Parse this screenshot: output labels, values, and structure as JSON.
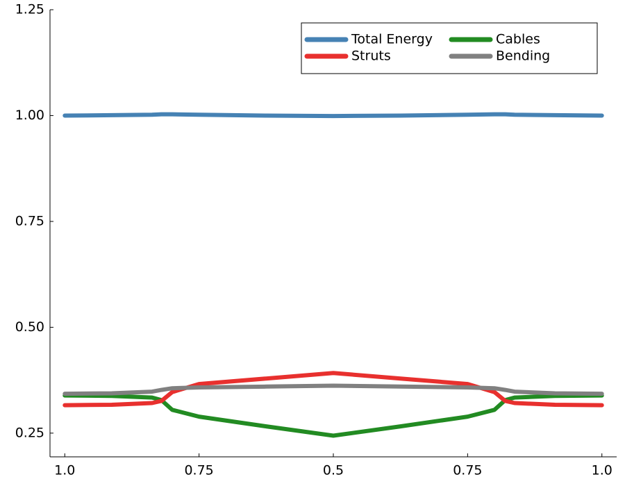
{
  "chart_data": {
    "type": "line",
    "x": [
      0,
      0.35,
      0.65,
      0.72,
      0.8,
      1.0,
      1.5,
      2,
      2.5,
      3,
      3.2,
      3.28,
      3.35,
      3.65,
      4
    ],
    "series": [
      {
        "name": "Total Energy",
        "color": "#4682b4",
        "values": [
          1.0,
          1.001,
          1.002,
          1.003,
          1.003,
          1.002,
          1.0,
          0.999,
          1.0,
          1.002,
          1.003,
          1.003,
          1.002,
          1.001,
          1.0
        ]
      },
      {
        "name": "Cables",
        "color": "#228b22",
        "values": [
          0.339,
          0.338,
          0.334,
          0.328,
          0.305,
          0.289,
          0.266,
          0.244,
          0.266,
          0.289,
          0.305,
          0.328,
          0.334,
          0.338,
          0.339
        ]
      },
      {
        "name": "Struts",
        "color": "#e8302e",
        "values": [
          0.316,
          0.317,
          0.321,
          0.326,
          0.347,
          0.366,
          0.379,
          0.392,
          0.379,
          0.366,
          0.347,
          0.326,
          0.321,
          0.317,
          0.316
        ]
      },
      {
        "name": "Bending",
        "color": "#808080",
        "values": [
          0.343,
          0.344,
          0.348,
          0.352,
          0.356,
          0.358,
          0.36,
          0.362,
          0.36,
          0.358,
          0.356,
          0.352,
          0.348,
          0.344,
          0.343
        ]
      }
    ],
    "xlim": [
      -0.11,
      4.11
    ],
    "xticks": [
      {
        "value": 0,
        "label": "1.0"
      },
      {
        "value": 1,
        "label": "0.75"
      },
      {
        "value": 2,
        "label": "0.5"
      },
      {
        "value": 3,
        "label": "0.75"
      },
      {
        "value": 4,
        "label": "1.0"
      }
    ],
    "ylim": [
      0.194,
      1.25
    ],
    "yticks": [
      0.25,
      {
        "value": 0.5,
        "label": "0.50"
      },
      0.75,
      {
        "value": 1.0,
        "label": "1.00"
      },
      1.25
    ],
    "grid": false,
    "legend": "top-right"
  }
}
